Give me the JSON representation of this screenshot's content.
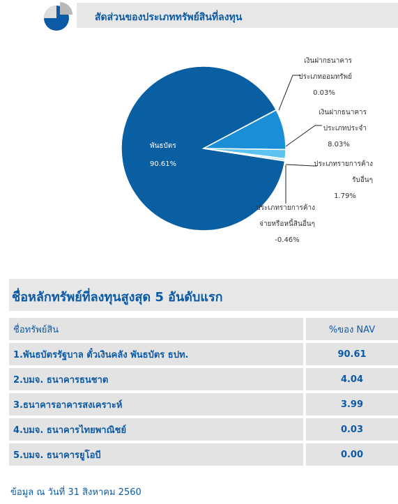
{
  "header": {
    "title": "สัดส่วนของประเภททรัพย์สินที่ลงทุน"
  },
  "chart_data": {
    "type": "pie",
    "slices": [
      {
        "label": "พันธบัตร",
        "value": 90.61,
        "display": "90.61%",
        "color": "#0a5ea2"
      },
      {
        "label": "เงินฝากธนาคารประเภทออมทรัพย์",
        "value": 0.03,
        "display": "0.03%",
        "color": "#4aa6e0"
      },
      {
        "label": "เงินฝากธนาคารประเภทประจำ",
        "value": 8.03,
        "display": "8.03%",
        "color": "#1a8fd8"
      },
      {
        "label": "ประเภทรายการค้างรับอื่นๆ",
        "value": 1.79,
        "display": "1.79%",
        "color": "#5cc2f0"
      },
      {
        "label": "ประเภทรายการค้างจ่ายหรือหนี้สินอื่นๆ",
        "value": -0.46,
        "display": "-0.46%",
        "color": "#cfeaf8"
      }
    ],
    "label_lines": [
      [
        "พันธบัตร",
        "90.61%"
      ],
      [
        "เงินฝากธนาคาร",
        "ประเภทออมทรัพย์",
        "0.03%"
      ],
      [
        "เงินฝากธนาคาร",
        "ประเภทประจำ",
        "8.03%"
      ],
      [
        "ประเภทรายการค้าง",
        "รับอื่นๆ",
        "1.79%"
      ],
      [
        "ประเภทรายการค้าง",
        "จ่ายหรือหนี้สินอื่นๆ",
        "-0.46%"
      ]
    ]
  },
  "top5": {
    "title": "ชื่อหลักทรัพย์ที่ลงทุนสูงสุด 5 อันดับแรก",
    "col_name": "ชื่อทรัพย์สิน",
    "col_pct": "%ของ NAV",
    "rows": [
      {
        "name": "1.พันธบัตรรัฐบาล ตั๋วเงินคลัง พันธบัตร ธปท.",
        "pct": "90.61"
      },
      {
        "name": "2.บมจ. ธนาคารธนชาต",
        "pct": "4.04"
      },
      {
        "name": "3.ธนาคารอาคารสงเคราะห์",
        "pct": "3.99"
      },
      {
        "name": "4.บมจ. ธนาคารไทยพาณิชย์",
        "pct": "0.03"
      },
      {
        "name": "5.บมจ. ธนาคารยูโอบี",
        "pct": "0.00"
      }
    ]
  },
  "footer": "ข้อมูล ณ วันที่ 31 สิงหาคม 2560"
}
